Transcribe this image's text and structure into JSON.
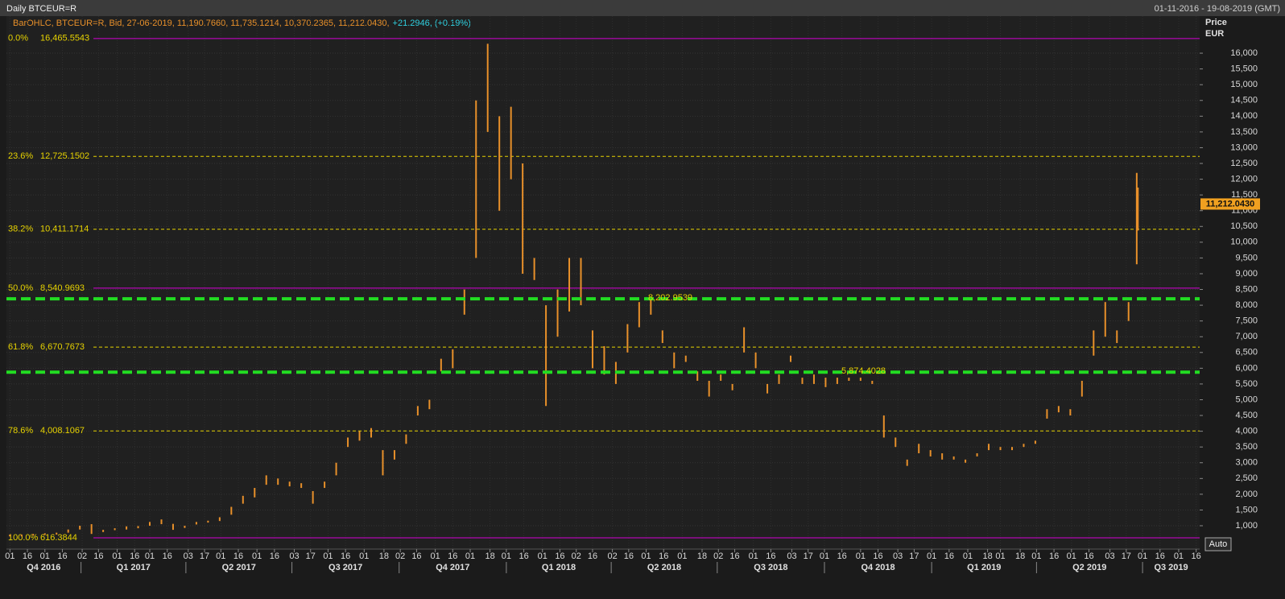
{
  "chart_data": {
    "type": "ohlc",
    "title": "Daily BTCEUR=R",
    "date_range": "01-11-2016 - 19-08-2019 (GMT)",
    "legend_text": "BarOHLC, BTCEUR=R, Bid, 27-06-2019, 11,190.7660, 11,735.1214, 10,370.2365, 11,212.0430,",
    "legend_change": "+21.2946, (+0.19%)",
    "y_axis_title": "Price",
    "y_axis_unit": "EUR",
    "auto_button": "Auto",
    "color": "#e8902a",
    "grid": true,
    "x": [
      "2016-11-01",
      "2016-11-11",
      "2016-11-21",
      "2016-12-01",
      "2016-12-11",
      "2016-12-21",
      "2016-12-31",
      "2017-01-10",
      "2017-01-20",
      "2017-01-30",
      "2017-02-09",
      "2017-02-19",
      "2017-03-01",
      "2017-03-11",
      "2017-03-21",
      "2017-03-31",
      "2017-04-10",
      "2017-04-20",
      "2017-04-30",
      "2017-05-10",
      "2017-05-20",
      "2017-05-30",
      "2017-06-09",
      "2017-06-19",
      "2017-06-29",
      "2017-07-09",
      "2017-07-19",
      "2017-07-29",
      "2017-08-08",
      "2017-08-18",
      "2017-08-28",
      "2017-09-07",
      "2017-09-17",
      "2017-09-27",
      "2017-10-07",
      "2017-10-17",
      "2017-10-27",
      "2017-11-06",
      "2017-11-16",
      "2017-11-26",
      "2017-12-06",
      "2017-12-16",
      "2017-12-26",
      "2018-01-05",
      "2018-01-15",
      "2018-01-25",
      "2018-02-04",
      "2018-02-14",
      "2018-02-24",
      "2018-03-06",
      "2018-03-16",
      "2018-03-26",
      "2018-04-05",
      "2018-04-15",
      "2018-04-25",
      "2018-05-05",
      "2018-05-15",
      "2018-05-25",
      "2018-06-04",
      "2018-06-14",
      "2018-06-24",
      "2018-07-04",
      "2018-07-14",
      "2018-07-24",
      "2018-08-03",
      "2018-08-13",
      "2018-08-23",
      "2018-09-02",
      "2018-09-12",
      "2018-09-22",
      "2018-10-02",
      "2018-10-12",
      "2018-10-22",
      "2018-11-01",
      "2018-11-11",
      "2018-11-21",
      "2018-12-01",
      "2018-12-11",
      "2018-12-21",
      "2018-12-31",
      "2019-01-10",
      "2019-01-20",
      "2019-01-30",
      "2019-02-09",
      "2019-02-19",
      "2019-03-01",
      "2019-03-11",
      "2019-03-21",
      "2019-03-31",
      "2019-04-10",
      "2019-04-20",
      "2019-04-30",
      "2019-05-10",
      "2019-05-20",
      "2019-05-30",
      "2019-06-09",
      "2019-06-19",
      "2019-06-26",
      "2019-06-27"
    ],
    "series": [
      {
        "name": "High",
        "values": [
          720,
          720,
          740,
          760,
          780,
          880,
          1000,
          1050,
          870,
          920,
          980,
          990,
          1120,
          1200,
          1060,
          1000,
          1120,
          1160,
          1270,
          1600,
          1950,
          2200,
          2600,
          2500,
          2400,
          2350,
          2100,
          2400,
          3000,
          3800,
          4000,
          4100,
          3400,
          3400,
          3900,
          4800,
          5000,
          6300,
          6600,
          8500,
          14500,
          16300,
          14000,
          14300,
          12500,
          9500,
          8000,
          8500,
          9500,
          9500,
          7200,
          6700,
          6200,
          7400,
          8100,
          8200,
          7200,
          6500,
          6400,
          5900,
          5600,
          5800,
          5500,
          7300,
          6500,
          5500,
          5800,
          6400,
          5700,
          5800,
          5700,
          5700,
          5700,
          5700,
          5600,
          4500,
          3800,
          3100,
          3600,
          3400,
          3300,
          3200,
          3100,
          3300,
          3600,
          3500,
          3500,
          3600,
          3700,
          4700,
          4800,
          4700,
          5600,
          7200,
          8100,
          7200,
          8100,
          12200,
          11735.1214
        ]
      },
      {
        "name": "Low",
        "values": [
          660,
          660,
          690,
          710,
          720,
          780,
          880,
          740,
          800,
          860,
          880,
          920,
          1000,
          1050,
          870,
          930,
          1040,
          1100,
          1150,
          1350,
          1700,
          1900,
          2300,
          2300,
          2250,
          2200,
          1700,
          2200,
          2600,
          3500,
          3700,
          3800,
          2600,
          3100,
          3600,
          4500,
          4700,
          5900,
          6000,
          7700,
          9500,
          13500,
          11000,
          12000,
          9000,
          8800,
          4800,
          7000,
          7800,
          8000,
          6000,
          5800,
          5500,
          6500,
          7300,
          7700,
          6800,
          6000,
          6200,
          5600,
          5100,
          5600,
          5300,
          6500,
          6000,
          5200,
          5500,
          6200,
          5500,
          5500,
          5400,
          5500,
          5600,
          5600,
          5500,
          3800,
          3500,
          2900,
          3300,
          3200,
          3100,
          3100,
          3000,
          3200,
          3400,
          3400,
          3400,
          3500,
          3600,
          4400,
          4600,
          4500,
          5100,
          6400,
          7000,
          6800,
          7500,
          9300,
          10370.2365
        ]
      }
    ],
    "last_price": {
      "value": 11212.043,
      "label": "11,212.0430"
    },
    "fib_levels": {
      "names": [
        "0.0%",
        "23.6%",
        "38.2%",
        "50.0%",
        "61.8%",
        "78.6%",
        "100.0%"
      ],
      "values": [
        16465.5543,
        12725.1502,
        10411.1714,
        8540.9693,
        6670.7673,
        4008.1067,
        616.3844
      ],
      "value_labels": [
        "16,465.5543",
        "12,725.1502",
        "10,411.1714",
        "8,540.9693",
        "6,670.7673",
        "4,008.1067",
        "616.3844"
      ],
      "colors": [
        "#d400d4",
        "#e6d200",
        "#e6d200",
        "#d400d4",
        "#e6d200",
        "#e6d200",
        "#d400d4"
      ],
      "dashed": [
        false,
        true,
        true,
        false,
        true,
        true,
        false
      ]
    },
    "support_lines": {
      "values": [
        8202.9539,
        5874.4028
      ],
      "value_labels": [
        "8,202.9539",
        "5,874.4028"
      ],
      "color": "#22dd22"
    },
    "xlim": [
      "2016-10-29",
      "2019-08-19"
    ],
    "ylim": [
      259,
      17177
    ],
    "yticks": [
      {
        "value": 1000,
        "label": "1,000"
      },
      {
        "value": 1500,
        "label": "1,500"
      },
      {
        "value": 2000,
        "label": "2,000"
      },
      {
        "value": 2500,
        "label": "2,500"
      },
      {
        "value": 3000,
        "label": "3,000"
      },
      {
        "value": 3500,
        "label": "3,500"
      },
      {
        "value": 4000,
        "label": "4,000"
      },
      {
        "value": 4500,
        "label": "4,500"
      },
      {
        "value": 5000,
        "label": "5,000"
      },
      {
        "value": 5500,
        "label": "5,500"
      },
      {
        "value": 6000,
        "label": "6,000"
      },
      {
        "value": 6500,
        "label": "6,500"
      },
      {
        "value": 7000,
        "label": "7,000"
      },
      {
        "value": 7500,
        "label": "7,500"
      },
      {
        "value": 8000,
        "label": "8,000"
      },
      {
        "value": 8500,
        "label": "8,500"
      },
      {
        "value": 9000,
        "label": "9,000"
      },
      {
        "value": 9500,
        "label": "9,500"
      },
      {
        "value": 10000,
        "label": "10,000"
      },
      {
        "value": 10500,
        "label": "10,500"
      },
      {
        "value": 11000,
        "label": "11,000"
      },
      {
        "value": 11500,
        "label": "11,500"
      },
      {
        "value": 12000,
        "label": "12,000"
      },
      {
        "value": 12500,
        "label": "12,500"
      },
      {
        "value": 13000,
        "label": "13,000"
      },
      {
        "value": 13500,
        "label": "13,500"
      },
      {
        "value": 14000,
        "label": "14,000"
      },
      {
        "value": 14500,
        "label": "14,500"
      },
      {
        "value": 15000,
        "label": "15,000"
      },
      {
        "value": 15500,
        "label": "15,500"
      },
      {
        "value": 16000,
        "label": "16,000"
      }
    ],
    "xticks": [
      {
        "value": "2016-11-01",
        "label": "01"
      },
      {
        "value": "2016-11-16",
        "label": "16"
      },
      {
        "value": "2016-12-01",
        "label": "01"
      },
      {
        "value": "2016-12-16",
        "label": "16"
      },
      {
        "value": "2017-01-02",
        "label": "02"
      },
      {
        "value": "2017-01-16",
        "label": "16"
      },
      {
        "value": "2017-02-01",
        "label": "01"
      },
      {
        "value": "2017-02-16",
        "label": "16"
      },
      {
        "value": "2017-03-01",
        "label": "01"
      },
      {
        "value": "2017-03-16",
        "label": "16"
      },
      {
        "value": "2017-04-03",
        "label": "03"
      },
      {
        "value": "2017-04-17",
        "label": "17"
      },
      {
        "value": "2017-05-01",
        "label": "01"
      },
      {
        "value": "2017-05-16",
        "label": "16"
      },
      {
        "value": "2017-06-01",
        "label": "01"
      },
      {
        "value": "2017-06-16",
        "label": "16"
      },
      {
        "value": "2017-07-03",
        "label": "03"
      },
      {
        "value": "2017-07-17",
        "label": "17"
      },
      {
        "value": "2017-08-01",
        "label": "01"
      },
      {
        "value": "2017-08-16",
        "label": "16"
      },
      {
        "value": "2017-09-01",
        "label": "01"
      },
      {
        "value": "2017-09-18",
        "label": "18"
      },
      {
        "value": "2017-10-02",
        "label": "02"
      },
      {
        "value": "2017-10-16",
        "label": "16"
      },
      {
        "value": "2017-11-01",
        "label": "01"
      },
      {
        "value": "2017-11-16",
        "label": "16"
      },
      {
        "value": "2017-12-01",
        "label": "01"
      },
      {
        "value": "2017-12-18",
        "label": "18"
      },
      {
        "value": "2018-01-01",
        "label": "01"
      },
      {
        "value": "2018-01-16",
        "label": "16"
      },
      {
        "value": "2018-02-01",
        "label": "01"
      },
      {
        "value": "2018-02-16",
        "label": "16"
      },
      {
        "value": "2018-03-02",
        "label": "02"
      },
      {
        "value": "2018-03-16",
        "label": "16"
      },
      {
        "value": "2018-04-02",
        "label": "02"
      },
      {
        "value": "2018-04-16",
        "label": "16"
      },
      {
        "value": "2018-05-01",
        "label": "01"
      },
      {
        "value": "2018-05-16",
        "label": "16"
      },
      {
        "value": "2018-06-01",
        "label": "01"
      },
      {
        "value": "2018-06-18",
        "label": "18"
      },
      {
        "value": "2018-07-02",
        "label": "02"
      },
      {
        "value": "2018-07-16",
        "label": "16"
      },
      {
        "value": "2018-08-01",
        "label": "01"
      },
      {
        "value": "2018-08-16",
        "label": "16"
      },
      {
        "value": "2018-09-03",
        "label": "03"
      },
      {
        "value": "2018-09-17",
        "label": "17"
      },
      {
        "value": "2018-10-01",
        "label": "01"
      },
      {
        "value": "2018-10-16",
        "label": "16"
      },
      {
        "value": "2018-11-01",
        "label": "01"
      },
      {
        "value": "2018-11-16",
        "label": "16"
      },
      {
        "value": "2018-12-03",
        "label": "03"
      },
      {
        "value": "2018-12-17",
        "label": "17"
      },
      {
        "value": "2019-01-01",
        "label": "01"
      },
      {
        "value": "2019-01-16",
        "label": "16"
      },
      {
        "value": "2019-02-01",
        "label": "01"
      },
      {
        "value": "2019-02-18",
        "label": "18"
      },
      {
        "value": "2019-03-01",
        "label": "01"
      },
      {
        "value": "2019-03-18",
        "label": "18"
      },
      {
        "value": "2019-04-01",
        "label": "01"
      },
      {
        "value": "2019-04-16",
        "label": "16"
      },
      {
        "value": "2019-05-01",
        "label": "01"
      },
      {
        "value": "2019-05-16",
        "label": "16"
      },
      {
        "value": "2019-06-03",
        "label": "03"
      },
      {
        "value": "2019-06-17",
        "label": "17"
      },
      {
        "value": "2019-07-01",
        "label": "01"
      },
      {
        "value": "2019-07-16",
        "label": "16"
      },
      {
        "value": "2019-08-01",
        "label": "01"
      },
      {
        "value": "2019-08-16",
        "label": "16"
      }
    ],
    "quarters": [
      "Q4 2016",
      "Q1 2017",
      "Q2 2017",
      "Q3 2017",
      "Q4 2017",
      "Q1 2018",
      "Q2 2018",
      "Q3 2018",
      "Q4 2018",
      "Q1 2019",
      "Q2 2019",
      "Q3 2019"
    ]
  }
}
